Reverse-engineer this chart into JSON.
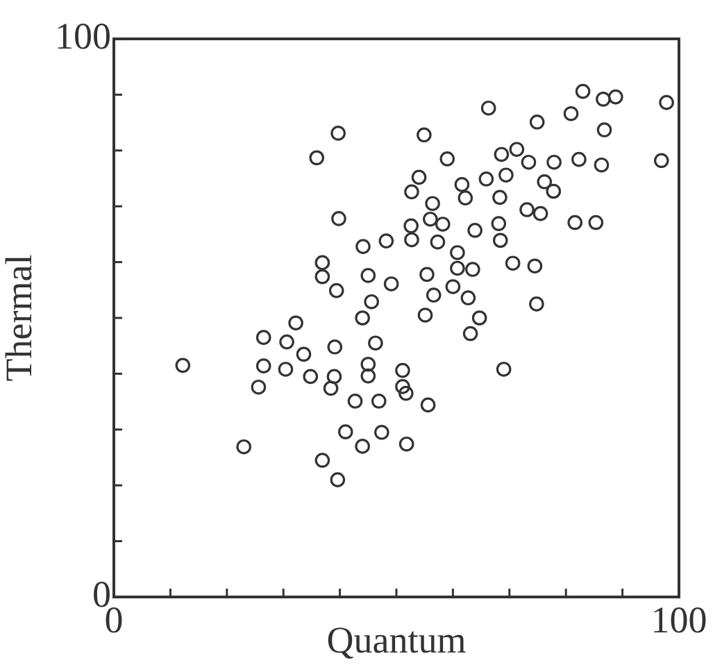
{
  "chart_data": {
    "type": "scatter",
    "xlabel": "Quantum",
    "ylabel": "Thermal",
    "xlim": [
      0,
      100
    ],
    "ylim": [
      0,
      100
    ],
    "xticks": [
      0,
      {
        "value": 10,
        "label": null
      },
      {
        "value": 20,
        "label": null
      },
      {
        "value": 30,
        "label": null
      },
      {
        "value": 40,
        "label": null
      },
      {
        "value": 50,
        "label": null
      },
      {
        "value": 60,
        "label": null
      },
      {
        "value": 70,
        "label": null
      },
      {
        "value": 80,
        "label": null
      },
      {
        "value": 90,
        "label": null
      },
      100
    ],
    "yticks": [
      0,
      {
        "value": 10,
        "label": null
      },
      {
        "value": 20,
        "label": null
      },
      {
        "value": 30,
        "label": null
      },
      {
        "value": 40,
        "label": null
      },
      {
        "value": 50,
        "label": null
      },
      {
        "value": 60,
        "label": null
      },
      {
        "value": 70,
        "label": null
      },
      {
        "value": 80,
        "label": null
      },
      {
        "value": 90,
        "label": null
      },
      100
    ],
    "marker": "circle",
    "grid": false,
    "legend": false,
    "series": [
      {
        "color": "#333333",
        "x": [
          39.7,
          35.9,
          39.8,
          44.1,
          48.2,
          36.9,
          36.9,
          39.4,
          45.0,
          49.1,
          45.6,
          83.0,
          86.6,
          88.8,
          97.8,
          66.3,
          80.9,
          74.9,
          86.8,
          54.9,
          59.0,
          68.6,
          71.3,
          73.4,
          77.9,
          82.3,
          86.3,
          96.9,
          54.0,
          52.7,
          61.6,
          62.2,
          65.9,
          69.4,
          68.3,
          76.2,
          77.8,
          56.4,
          56.0,
          58.2,
          52.6,
          52.7,
          57.3,
          63.9,
          68.1,
          68.4,
          73.1,
          75.5,
          81.6,
          85.3,
          60.8,
          60.8,
          63.5,
          70.6,
          74.5,
          55.4,
          60.0,
          56.6,
          62.7,
          74.8,
          55.1,
          64.7,
          63.1,
          51.1,
          51.1,
          51.7,
          55.6,
          69.0,
          51.8,
          44.0,
          32.2,
          26.5,
          30.6,
          33.6,
          39.1,
          46.3,
          12.2,
          26.5,
          30.4,
          34.8,
          39.0,
          38.4,
          45.0,
          45.0,
          25.6,
          42.7,
          46.9,
          41.0,
          47.4,
          44.0,
          23.0,
          36.9,
          39.6
        ],
        "values": [
          83.1,
          78.7,
          67.8,
          62.8,
          63.8,
          59.9,
          57.4,
          54.9,
          57.6,
          56.1,
          52.9,
          90.6,
          89.2,
          89.6,
          88.6,
          87.6,
          86.6,
          85.1,
          83.7,
          82.8,
          78.5,
          79.3,
          80.2,
          77.9,
          77.9,
          78.4,
          77.4,
          78.2,
          75.2,
          72.6,
          73.9,
          71.5,
          74.9,
          75.6,
          71.6,
          74.4,
          72.7,
          70.5,
          67.7,
          66.8,
          66.5,
          64.0,
          63.6,
          65.7,
          66.9,
          63.9,
          69.4,
          68.7,
          67.1,
          67.1,
          61.7,
          58.9,
          58.7,
          59.8,
          59.3,
          57.8,
          55.6,
          54.1,
          53.6,
          52.5,
          50.5,
          50.0,
          47.2,
          40.6,
          37.7,
          36.5,
          34.4,
          40.8,
          27.4,
          50.0,
          49.1,
          46.5,
          45.7,
          43.5,
          44.8,
          45.5,
          41.5,
          41.4,
          40.8,
          39.5,
          39.5,
          37.4,
          41.7,
          39.6,
          37.6,
          35.1,
          35.1,
          29.6,
          29.5,
          27.0,
          26.9,
          24.5,
          21.0
        ]
      }
    ]
  }
}
